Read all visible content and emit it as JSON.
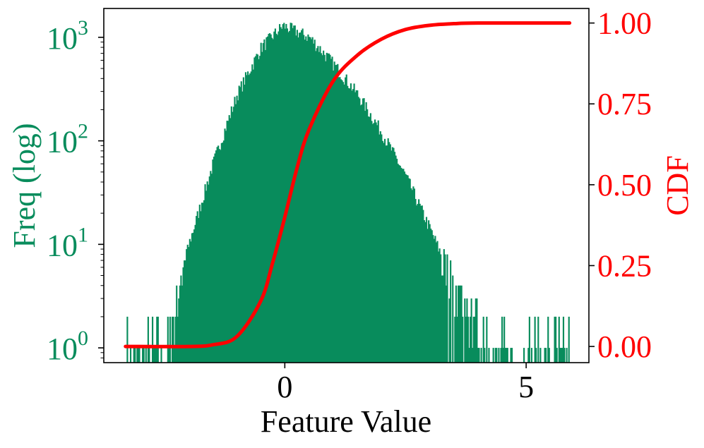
{
  "colors": {
    "histogram": "#088C5C",
    "cdf": "#FF0000",
    "axes": "#000000"
  },
  "chart_data": {
    "type": "bar",
    "subtype": "histogram with cumulative distribution line on a secondary y-axis",
    "title": "",
    "xlabel": "Feature Value",
    "ylabel_left": "Freq (log)",
    "ylabel_right": "CDF",
    "grid": false,
    "legend": "none",
    "x_axis": {
      "range": [
        -3.75,
        6.3
      ],
      "ticks": [
        0,
        5
      ],
      "tick_labels": [
        "0",
        "5"
      ]
    },
    "y_left": {
      "scale": "log",
      "range": [
        0.72,
        1900
      ],
      "ticks": [
        1,
        10,
        100,
        1000
      ],
      "tick_base": "10",
      "tick_exponents": [
        "0",
        "1",
        "2",
        "3"
      ]
    },
    "y_right": {
      "scale": "linear",
      "range": [
        -0.05,
        1.045
      ],
      "ticks": [
        0,
        0.25,
        0.5,
        0.75,
        1
      ],
      "tick_labels": [
        "0.00",
        "0.25",
        "0.50",
        "0.75",
        "1.00"
      ]
    },
    "histogram": {
      "name": "Freq",
      "x_min": -3.3,
      "x_max": 5.9,
      "bin_width": 0.0227,
      "peak_x": -0.05,
      "peak_count": 1300,
      "profile": [
        {
          "x": -3.3,
          "count": 0.9
        },
        {
          "x": -2.5,
          "count": 1
        },
        {
          "x": -2.2,
          "count": 4
        },
        {
          "x": -2.0,
          "count": 10
        },
        {
          "x": -1.5,
          "count": 60
        },
        {
          "x": -1.0,
          "count": 280
        },
        {
          "x": -0.5,
          "count": 800
        },
        {
          "x": -0.05,
          "count": 1300
        },
        {
          "x": 0.5,
          "count": 1000
        },
        {
          "x": 1.0,
          "count": 550
        },
        {
          "x": 1.5,
          "count": 280
        },
        {
          "x": 2.0,
          "count": 120
        },
        {
          "x": 2.5,
          "count": 45
        },
        {
          "x": 3.0,
          "count": 14
        },
        {
          "x": 3.5,
          "count": 4
        },
        {
          "x": 4.0,
          "count": 2
        },
        {
          "x": 4.7,
          "count": 1
        },
        {
          "x": 5.9,
          "count": 1
        }
      ]
    },
    "cdf": {
      "name": "CDF",
      "points": [
        {
          "x": -3.3,
          "y": 0.0
        },
        {
          "x": -2.0,
          "y": 0.0
        },
        {
          "x": -1.5,
          "y": 0.005
        },
        {
          "x": -1.0,
          "y": 0.03
        },
        {
          "x": -0.5,
          "y": 0.14
        },
        {
          "x": -0.25,
          "y": 0.26
        },
        {
          "x": 0.0,
          "y": 0.4
        },
        {
          "x": 0.25,
          "y": 0.55
        },
        {
          "x": 0.5,
          "y": 0.67
        },
        {
          "x": 1.0,
          "y": 0.82
        },
        {
          "x": 1.5,
          "y": 0.9
        },
        {
          "x": 2.0,
          "y": 0.95
        },
        {
          "x": 2.5,
          "y": 0.98
        },
        {
          "x": 3.0,
          "y": 0.993
        },
        {
          "x": 3.5,
          "y": 0.998
        },
        {
          "x": 4.0,
          "y": 1.0
        },
        {
          "x": 5.9,
          "y": 1.0
        }
      ]
    }
  }
}
